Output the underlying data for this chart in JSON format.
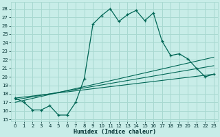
{
  "xlabel": "Humidex (Indice chaleur)",
  "bg_color": "#c8ede8",
  "grid_color": "#a8d8d0",
  "line_color": "#006655",
  "xlim": [
    -0.5,
    23.5
  ],
  "ylim": [
    14.8,
    28.8
  ],
  "yticks": [
    15,
    16,
    17,
    18,
    19,
    20,
    21,
    22,
    23,
    24,
    25,
    26,
    27,
    28
  ],
  "xticks": [
    0,
    1,
    2,
    3,
    4,
    5,
    6,
    7,
    8,
    9,
    10,
    11,
    12,
    13,
    14,
    15,
    16,
    17,
    18,
    19,
    20,
    21,
    22,
    23
  ],
  "line1_x": [
    0,
    1,
    2,
    3,
    4,
    5,
    6,
    7,
    8,
    9,
    10,
    11,
    12,
    13,
    14,
    15,
    16,
    17,
    18,
    19,
    20,
    21,
    22,
    23
  ],
  "line1_y": [
    17.5,
    17.0,
    16.1,
    16.1,
    16.6,
    15.5,
    15.5,
    17.0,
    19.8,
    26.2,
    27.2,
    28.0,
    26.5,
    27.3,
    27.8,
    26.6,
    27.5,
    24.2,
    22.5,
    22.7,
    22.1,
    21.0,
    20.0,
    20.3
  ],
  "line2_x": [
    0,
    23
  ],
  "line2_y": [
    17.5,
    20.3
  ],
  "line3_x": [
    0,
    23
  ],
  "line3_y": [
    17.3,
    21.3
  ],
  "line4_x": [
    0,
    23
  ],
  "line4_y": [
    17.0,
    22.3
  ]
}
